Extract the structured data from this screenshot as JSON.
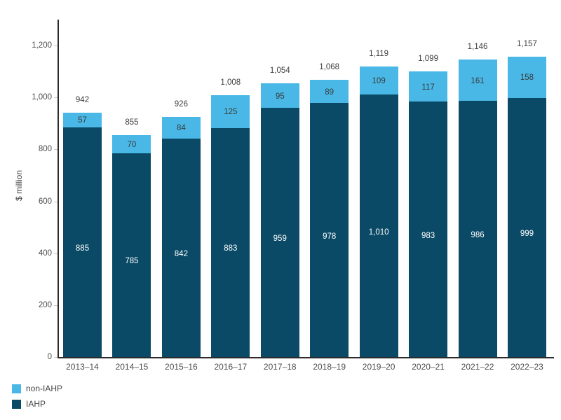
{
  "chart_data": {
    "type": "bar",
    "stacked": true,
    "title": "",
    "xlabel": "",
    "ylabel": "$ million",
    "categories": [
      "2013–14",
      "2014–15",
      "2015–16",
      "2016–17",
      "2017–18",
      "2018–19",
      "2019–20",
      "2020–21",
      "2021–22",
      "2022–23"
    ],
    "series": [
      {
        "name": "non-IAHP",
        "color": "#49B8E6",
        "label_color": "#3a3a3a",
        "values": [
          57,
          70,
          84,
          125,
          95,
          89,
          109,
          117,
          161,
          158
        ],
        "value_labels": [
          "57",
          "70",
          "84",
          "125",
          "95",
          "89",
          "109",
          "117",
          "161",
          "158"
        ]
      },
      {
        "name": "IAHP",
        "color": "#0A4A66",
        "label_color": "#ffffff",
        "values": [
          885,
          785,
          842,
          883,
          959,
          978,
          1010,
          983,
          986,
          999
        ],
        "value_labels": [
          "885",
          "785",
          "842",
          "883",
          "959",
          "978",
          "1,010",
          "983",
          "986",
          "999"
        ]
      }
    ],
    "totals": [
      942,
      855,
      926,
      1008,
      1054,
      1068,
      1119,
      1099,
      1146,
      1157
    ],
    "total_labels": [
      "942",
      "855",
      "926",
      "1,008",
      "1,054",
      "1,068",
      "1,119",
      "1,099",
      "1,146",
      "1,157"
    ],
    "y_ticks": [
      0,
      200,
      400,
      600,
      800,
      1000,
      1200
    ],
    "y_tick_labels": [
      "0",
      "200",
      "400",
      "600",
      "800",
      "1,000",
      "1,200"
    ],
    "ylim": [
      0,
      1300
    ],
    "grid": false,
    "legend_position": "bottom-left",
    "legend": [
      {
        "label": "non-IAHP",
        "color": "#49B8E6"
      },
      {
        "label": "IAHP",
        "color": "#0A4A66"
      }
    ]
  }
}
